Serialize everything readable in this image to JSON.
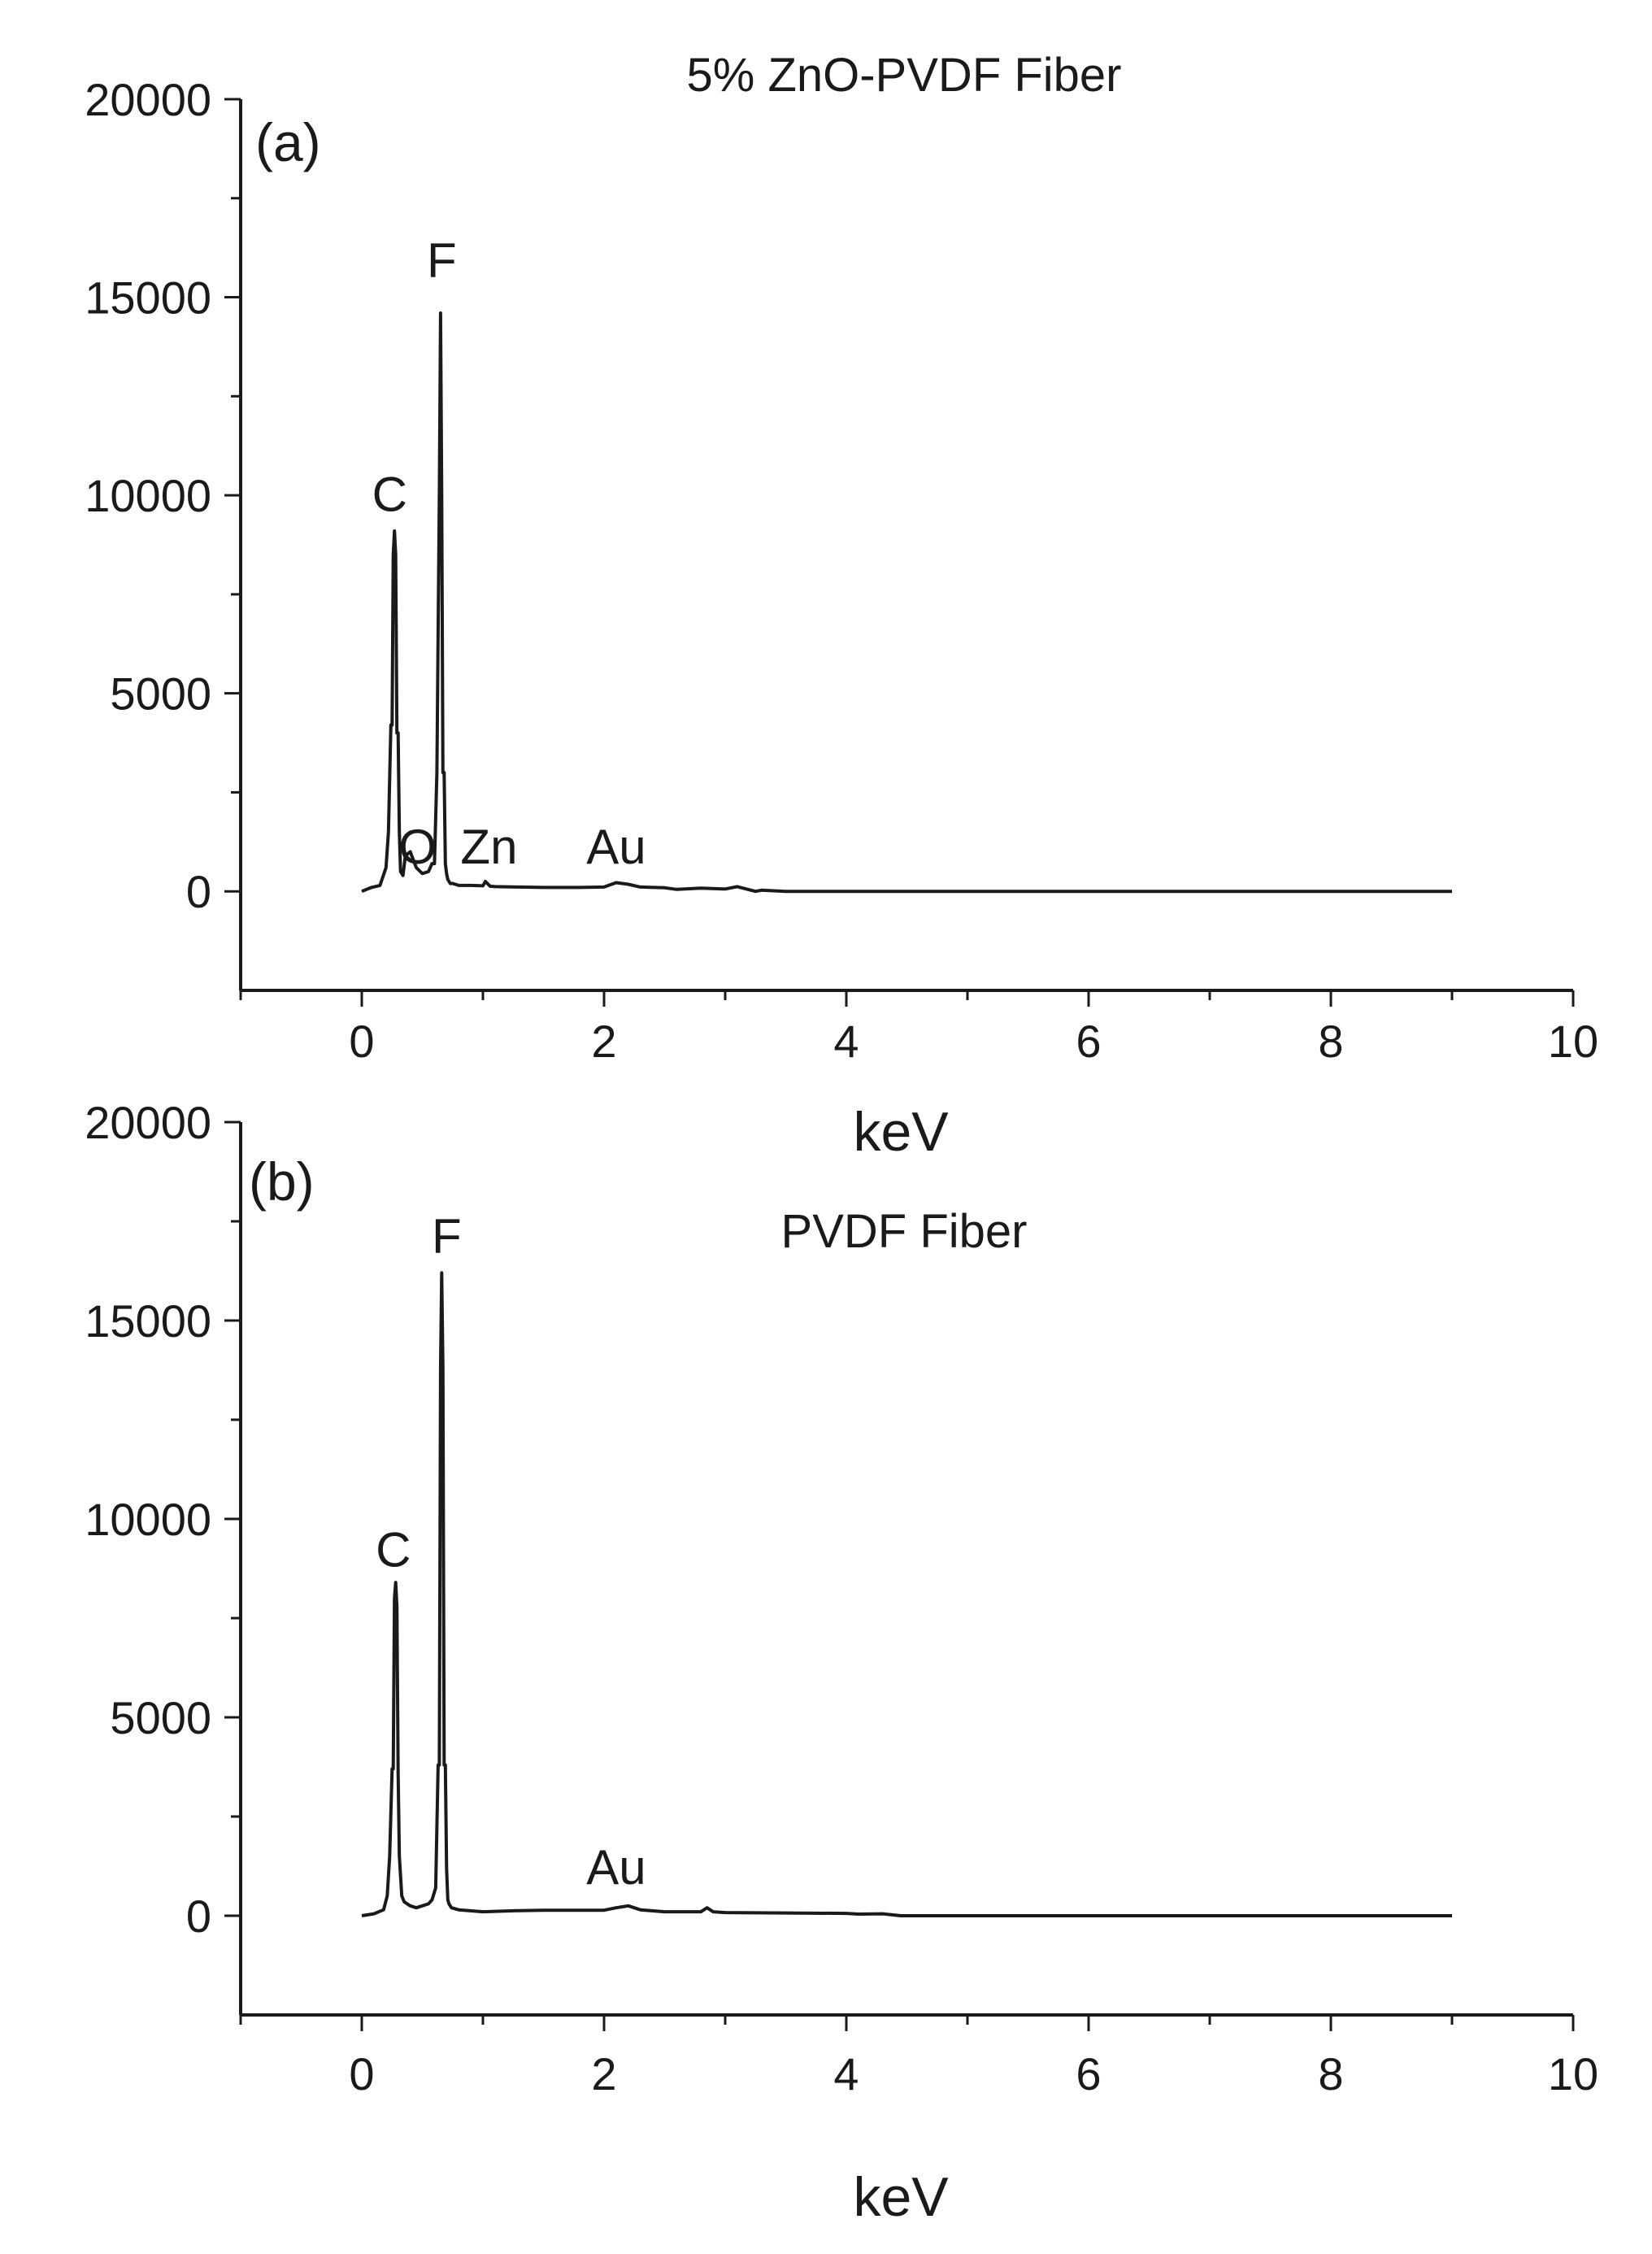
{
  "chart_data": [
    {
      "type": "line",
      "panel_label": "(a)",
      "title": "5% ZnO-PVDF Fiber",
      "xlabel": "keV",
      "ylabel": "",
      "xlim": [
        -1,
        10
      ],
      "ylim": [
        -2500,
        20000
      ],
      "xticks": [
        "0",
        "2",
        "4",
        "6",
        "8",
        "10"
      ],
      "yticks": [
        "20000",
        "15000",
        "10000",
        "5000",
        "0"
      ],
      "grid": false,
      "series": [
        {
          "color": "#1a1a1a",
          "x": [
            0.0,
            0.08,
            0.15,
            0.2,
            0.22,
            0.24,
            0.25,
            0.26,
            0.27,
            0.28,
            0.29,
            0.3,
            0.31,
            0.32,
            0.34,
            0.36,
            0.4,
            0.45,
            0.5,
            0.55,
            0.58,
            0.6,
            0.62,
            0.64,
            0.65,
            0.66,
            0.67,
            0.68,
            0.69,
            0.7,
            0.71,
            0.72,
            0.73,
            0.75,
            0.8,
            0.9,
            1.0,
            1.02,
            1.06,
            1.1,
            1.3,
            1.5,
            1.8,
            2.0,
            2.1,
            2.2,
            2.3,
            2.5,
            2.6,
            2.8,
            3.0,
            3.1,
            3.2,
            3.25,
            3.3,
            3.5,
            4.0,
            5.0,
            6.0,
            7.0,
            8.0,
            9.0
          ],
          "y": [
            0,
            100,
            150,
            600,
            1500,
            4200,
            4200,
            8500,
            9100,
            8500,
            4000,
            4000,
            1500,
            500,
            400,
            900,
            1000,
            600,
            450,
            500,
            700,
            700,
            3000,
            10000,
            14600,
            10000,
            3000,
            3000,
            700,
            450,
            300,
            250,
            200,
            200,
            150,
            150,
            140,
            250,
            130,
            120,
            110,
            100,
            100,
            110,
            220,
            180,
            110,
            90,
            50,
            80,
            60,
            120,
            40,
            0,
            30,
            0,
            0,
            0,
            0,
            0,
            0,
            0
          ]
        }
      ],
      "annotations": [
        {
          "text": "C",
          "x": 0.23,
          "y": 9600
        },
        {
          "text": "F",
          "x": 0.66,
          "y": 15500
        },
        {
          "text": "O",
          "x": 0.46,
          "y": 700
        },
        {
          "text": "Zn",
          "x": 1.05,
          "y": 700
        },
        {
          "text": "Au",
          "x": 2.1,
          "y": 700
        }
      ]
    },
    {
      "type": "line",
      "panel_label": "(b)",
      "title": "PVDF Fiber",
      "xlabel": "keV",
      "ylabel": "",
      "xlim": [
        -1,
        10
      ],
      "ylim": [
        -2500,
        20000
      ],
      "xticks": [
        "0",
        "2",
        "4",
        "6",
        "8",
        "10"
      ],
      "yticks": [
        "20000",
        "15000",
        "10000",
        "5000",
        "0"
      ],
      "grid": false,
      "series": [
        {
          "color": "#1a1a1a",
          "x": [
            0.0,
            0.1,
            0.18,
            0.21,
            0.23,
            0.25,
            0.26,
            0.27,
            0.28,
            0.29,
            0.3,
            0.31,
            0.33,
            0.35,
            0.4,
            0.45,
            0.5,
            0.55,
            0.58,
            0.61,
            0.63,
            0.64,
            0.65,
            0.66,
            0.67,
            0.68,
            0.69,
            0.7,
            0.71,
            0.72,
            0.74,
            0.8,
            1.0,
            1.3,
            1.5,
            1.8,
            2.0,
            2.1,
            2.2,
            2.3,
            2.5,
            2.8,
            2.85,
            2.9,
            3.0,
            3.5,
            4.0,
            4.1,
            4.3,
            4.45,
            4.5,
            5.0,
            6.0,
            7.0,
            8.0,
            9.0
          ],
          "y": [
            0,
            50,
            150,
            500,
            1500,
            3700,
            3700,
            8000,
            8400,
            7800,
            3600,
            1500,
            500,
            350,
            250,
            200,
            250,
            300,
            400,
            700,
            3800,
            3800,
            13800,
            16200,
            13800,
            3800,
            3800,
            1200,
            400,
            300,
            200,
            150,
            100,
            130,
            140,
            140,
            140,
            200,
            250,
            150,
            100,
            100,
            200,
            100,
            80,
            70,
            60,
            40,
            50,
            0,
            0,
            0,
            0,
            0,
            0,
            0
          ]
        }
      ],
      "annotations": [
        {
          "text": "C",
          "x": 0.26,
          "y": 8800
        },
        {
          "text": "F",
          "x": 0.7,
          "y": 16700
        },
        {
          "text": "Au",
          "x": 2.1,
          "y": 800
        }
      ]
    }
  ]
}
